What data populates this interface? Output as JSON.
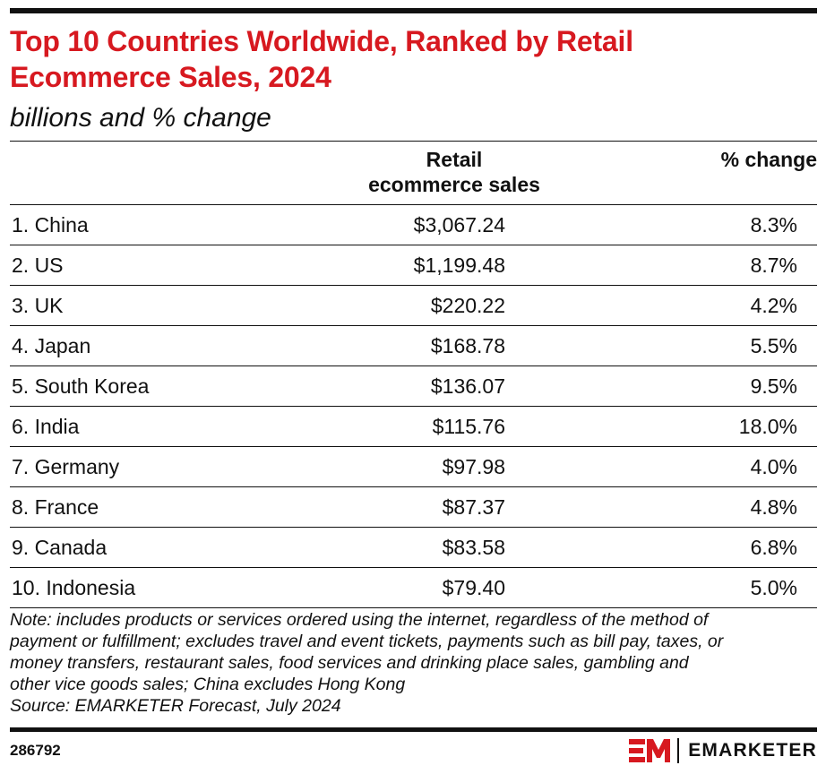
{
  "chart_data": {
    "type": "table",
    "title_lines": [
      "Top 10 Countries Worldwide, Ranked by Retail",
      "Ecommerce Sales, 2024"
    ],
    "subtitle": "billions and % change",
    "columns": {
      "sales_lines": [
        "Retail",
        "ecommerce sales"
      ],
      "pct": "% change"
    },
    "rows": [
      {
        "name": "1. China",
        "sales": "$3,067.24",
        "pct": "8.3%"
      },
      {
        "name": "2. US",
        "sales": "$1,199.48",
        "pct": "8.7%"
      },
      {
        "name": "3. UK",
        "sales": "$220.22",
        "pct": "4.2%"
      },
      {
        "name": "4. Japan",
        "sales": "$168.78",
        "pct": "5.5%"
      },
      {
        "name": "5. South Korea",
        "sales": "$136.07",
        "pct": "9.5%"
      },
      {
        "name": "6. India",
        "sales": "$115.76",
        "pct": "18.0%"
      },
      {
        "name": "7. Germany",
        "sales": "$97.98",
        "pct": "4.0%"
      },
      {
        "name": "8. France",
        "sales": "$87.37",
        "pct": "4.8%"
      },
      {
        "name": "9. Canada",
        "sales": "$83.58",
        "pct": "6.8%"
      },
      {
        "name": "10. Indonesia",
        "sales": "$79.40",
        "pct": "5.0%"
      }
    ],
    "note_lines": [
      "Note: includes products or services ordered using the internet, regardless of the method of",
      "payment or fulfillment; excludes travel and event tickets, payments such as bill pay, taxes, or",
      "money transfers, restaurant sales, food services and drinking place sales, gambling and",
      "other vice goods sales; China excludes Hong Kong",
      "Source: EMARKETER Forecast, July 2024"
    ]
  },
  "footer": {
    "chart_id": "286792",
    "logo_mark": "EM",
    "brand": "EMARKETER"
  },
  "colors": {
    "title": "#d71920",
    "logo": "#d71920",
    "text": "#111111",
    "rules": "#111111"
  }
}
